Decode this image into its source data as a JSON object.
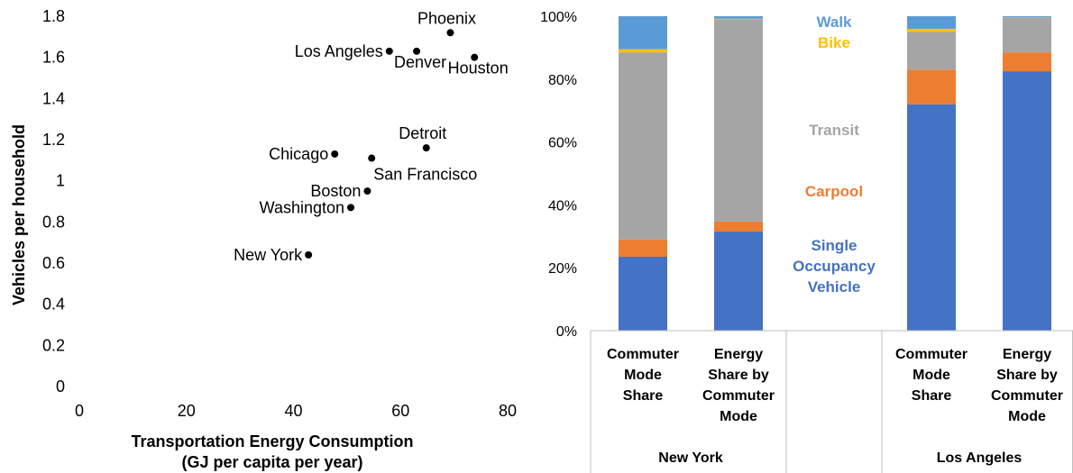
{
  "chart_data": [
    {
      "type": "scatter",
      "xlabel": [
        "Transportation Energy Consumption",
        "(GJ per capita per year)"
      ],
      "ylabel": "Vehicles per household",
      "xlim": [
        0,
        80
      ],
      "ylim": [
        0,
        1.8
      ],
      "xticks": [
        0,
        20,
        40,
        60,
        80
      ],
      "yticks": [
        0,
        0.2,
        0.4,
        0.6,
        0.8,
        1,
        1.2,
        1.4,
        1.6,
        1.8
      ],
      "grid": false,
      "points": [
        {
          "label": "Phoenix",
          "x": 69.3,
          "y": 1.72,
          "label_pos": "above"
        },
        {
          "label": "Los Angeles",
          "x": 57.9,
          "y": 1.63,
          "label_pos": "left"
        },
        {
          "label": "Denver",
          "x": 63.0,
          "y": 1.63,
          "label_pos": "below"
        },
        {
          "label": "Houston",
          "x": 73.8,
          "y": 1.6,
          "label_pos": "below"
        },
        {
          "label": "Detroit",
          "x": 64.8,
          "y": 1.16,
          "label_pos": "above"
        },
        {
          "label": "Chicago",
          "x": 47.7,
          "y": 1.13,
          "label_pos": "left"
        },
        {
          "label": "San Francisco",
          "x": 54.6,
          "y": 1.11,
          "label_pos": "below-right"
        },
        {
          "label": "Boston",
          "x": 53.8,
          "y": 0.95,
          "label_pos": "left"
        },
        {
          "label": "Washington",
          "x": 50.7,
          "y": 0.87,
          "label_pos": "left"
        },
        {
          "label": "New York",
          "x": 42.8,
          "y": 0.64,
          "label_pos": "left"
        }
      ]
    },
    {
      "type": "bar",
      "stacked": true,
      "ylim": [
        0,
        100
      ],
      "yticks": [
        "0%",
        "20%",
        "40%",
        "60%",
        "80%",
        "100%"
      ],
      "groups": [
        {
          "name": "New York",
          "categories": [
            [
              "Commuter",
              "Mode",
              "Share"
            ],
            [
              "Energy",
              "Share by",
              "Commuter",
              "Mode"
            ]
          ]
        },
        {
          "name": "Los Angeles",
          "categories": [
            [
              "Commuter",
              "Mode",
              "Share"
            ],
            [
              "Energy",
              "Share by",
              "Commuter",
              "Mode"
            ]
          ]
        }
      ],
      "series": [
        {
          "name": "Single Occupancy Vehicle",
          "label_lines": [
            "Single",
            "Occupancy",
            "Vehicle"
          ],
          "color": "#4472C4",
          "values": [
            23.5,
            31.5,
            72,
            82.5
          ]
        },
        {
          "name": "Carpool",
          "label_lines": [
            "Carpool"
          ],
          "color": "#ED7D31",
          "values": [
            5.5,
            3.2,
            11,
            6
          ]
        },
        {
          "name": "Transit",
          "label_lines": [
            "Transit"
          ],
          "color": "#A5A5A5",
          "values": [
            59.5,
            64.3,
            12,
            11
          ]
        },
        {
          "name": "Bike",
          "label_lines": [
            "Bike"
          ],
          "color": "#FFC000",
          "values": [
            1,
            0.2,
            1,
            0.1
          ]
        },
        {
          "name": "Walk",
          "label_lines": [
            "Walk"
          ],
          "color": "#5B9BD5",
          "values": [
            10.5,
            0.8,
            4,
            0.4
          ]
        }
      ]
    }
  ]
}
